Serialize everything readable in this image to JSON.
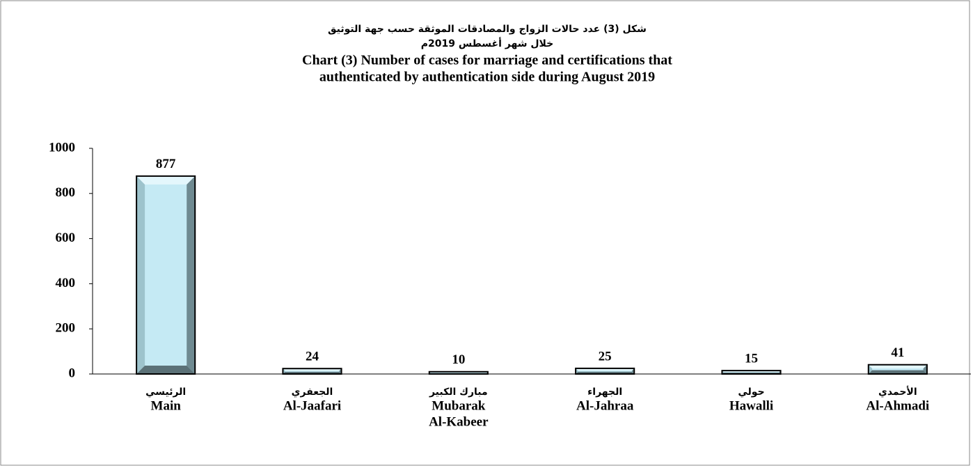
{
  "chart_data": {
    "type": "bar",
    "title": [
      "شكل (3) عدد حالات الزواج والمصادقات الموثقة حسب جهة التوثيق",
      "خلال شهر أغسطس 2019م",
      "Chart (3) Number of cases for marriage and certifications that",
      "authenticated by authentication side during August 2019"
    ],
    "categories": [
      [
        "الرئيسي",
        "Main"
      ],
      [
        "الجعفري",
        "Al-Jaafari"
      ],
      [
        "مبارك الكبير",
        "Mubarak",
        "Al-Kabeer"
      ],
      [
        "الجهراء",
        "Al-Jahraa"
      ],
      [
        "حولي",
        "Hawalli"
      ],
      [
        "الأحمدي",
        "Al-Ahmadi"
      ]
    ],
    "values": [
      877,
      24,
      10,
      25,
      15,
      41
    ],
    "color": "#c5eaf4",
    "ylim": [
      0,
      1000
    ],
    "yticks": [
      0,
      200,
      400,
      600,
      800,
      1000
    ],
    "grid": false
  }
}
